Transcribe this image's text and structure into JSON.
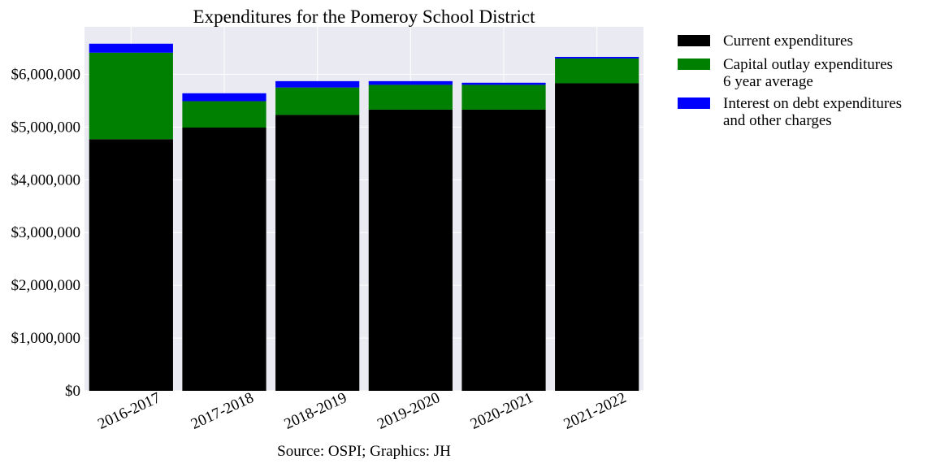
{
  "chart_data": {
    "type": "bar",
    "stacked": true,
    "title": "Expenditures for the Pomeroy School District",
    "source": "Source: OSPI; Graphics: JH",
    "categories": [
      "2016-2017",
      "2017-2018",
      "2018-2019",
      "2019-2020",
      "2020-2021",
      "2021-2022"
    ],
    "series": [
      {
        "name": "Current expenditures",
        "color": "#000000",
        "values": [
          4770000,
          4990000,
          5230000,
          5330000,
          5330000,
          5830000
        ]
      },
      {
        "name": "Capital outlay expenditures\n6 year average",
        "color": "#008000",
        "values": [
          1640000,
          500000,
          520000,
          470000,
          470000,
          470000
        ]
      },
      {
        "name": "Interest on debt expenditures\nand other charges",
        "color": "#0000ff",
        "values": [
          170000,
          150000,
          120000,
          70000,
          40000,
          30000
        ]
      }
    ],
    "yticks": [
      "$0",
      "$1,000,000",
      "$2,000,000",
      "$3,000,000",
      "$4,000,000",
      "$5,000,000",
      "$6,000,000"
    ],
    "ylim": [
      0,
      6900000
    ],
    "grid": true,
    "legend_position": "outside-right",
    "plot_background": "#eaeaf2"
  }
}
